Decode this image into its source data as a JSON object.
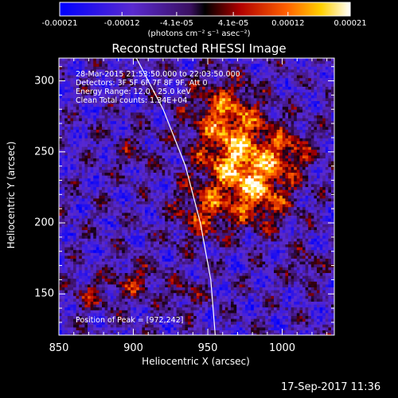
{
  "chart_data": {
    "type": "heatmap",
    "title": "Reconstructed RHESSI Image",
    "xlabel": "Heliocentric X (arcsec)",
    "ylabel": "Heliocentric Y (arcsec)",
    "xlim": [
      850,
      1035
    ],
    "ylim": [
      121,
      316
    ],
    "x_ticks": [
      "850",
      "900",
      "950",
      "1000"
    ],
    "x_tick_values": [
      850,
      900,
      950,
      1000
    ],
    "y_ticks": [
      "150",
      "200",
      "250",
      "300"
    ],
    "y_tick_values": [
      150,
      200,
      250,
      300
    ],
    "colorbar": {
      "ticks": [
        "-0.00021",
        "-0.00012",
        "-4.1e-05",
        "4.1e-05",
        "0.00012",
        "0.00021"
      ],
      "tick_values": [
        -0.00021,
        -0.00012,
        -4.1e-05,
        4.1e-05,
        0.00012,
        0.00021
      ],
      "units": "(photons cm⁻² s⁻¹ asec⁻²)",
      "colors": [
        "#0000ff",
        "#6a2fb0",
        "#000000",
        "#a00000",
        "#ff5a00",
        "#ffcc00",
        "#ffffff"
      ]
    },
    "annotations": {
      "time_range": "28-Mar-2015 21:53:50.000 to 22:03:50.000",
      "detectors": "Detectors: 3F 5F 6F 7F 8F 9F, Att 0",
      "energy_range": "Energy Range: 12.0 - 25.0 keV",
      "clean_counts": "Clean     Total counts: 1.34E+04",
      "peak_position": "Position of Peak = [972,242]"
    },
    "peak": [
      972,
      242
    ],
    "limb_curve": [
      [
        902,
        316
      ],
      [
        920,
        280
      ],
      [
        935,
        240
      ],
      [
        945,
        200
      ],
      [
        952,
        160
      ],
      [
        955,
        121
      ]
    ]
  },
  "timestamp": "17-Sep-2017 11:36"
}
